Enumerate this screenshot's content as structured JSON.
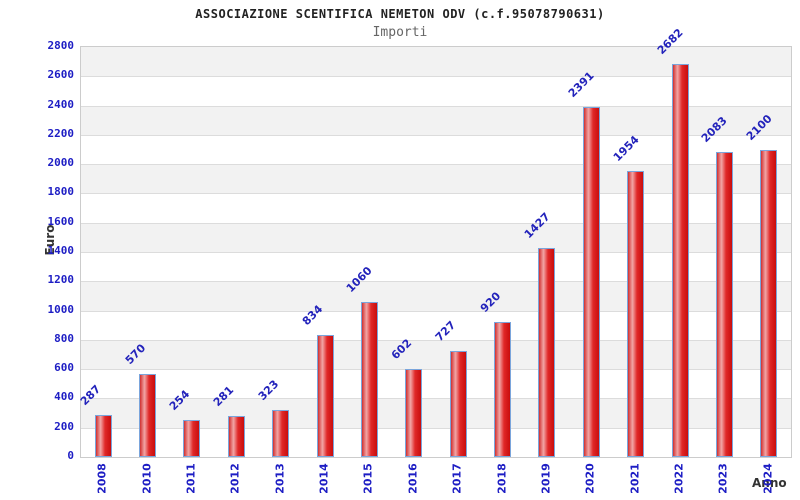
{
  "chart_data": {
    "type": "bar",
    "title": "ASSOCIAZIONE SCENTIFICA NEMETON ODV (c.f.95078790631)",
    "subtitle": "Importi",
    "xlabel": "Anno",
    "ylabel": "Euro",
    "categories": [
      "2008",
      "2010",
      "2011",
      "2012",
      "2013",
      "2014",
      "2015",
      "2016",
      "2017",
      "2018",
      "2019",
      "2020",
      "2021",
      "2022",
      "2023",
      "2024"
    ],
    "values": [
      287,
      570,
      254,
      281,
      323,
      834,
      1060,
      602,
      727,
      920,
      1427,
      2391,
      1954,
      2682,
      2083,
      2100
    ],
    "ylim": [
      0,
      2800
    ],
    "ytick_step": 200,
    "legend": "none",
    "grid": "horizontal-bands-alternating",
    "colors": {
      "title": "#222222",
      "subtitle": "#666666",
      "tick_label": "#1d1dc4",
      "value_label": "#2323bb",
      "axis_title": "#333333",
      "band_dark": "#f2f2f2",
      "band_light": "#ffffff",
      "gridline": "#dcdcdc",
      "plot_border": "#cccccc",
      "bar_border": "#7aa5dc",
      "bar_gradient": [
        "#d03030",
        "#f2a6a6",
        "#e02828",
        "#c90d0d"
      ]
    }
  }
}
